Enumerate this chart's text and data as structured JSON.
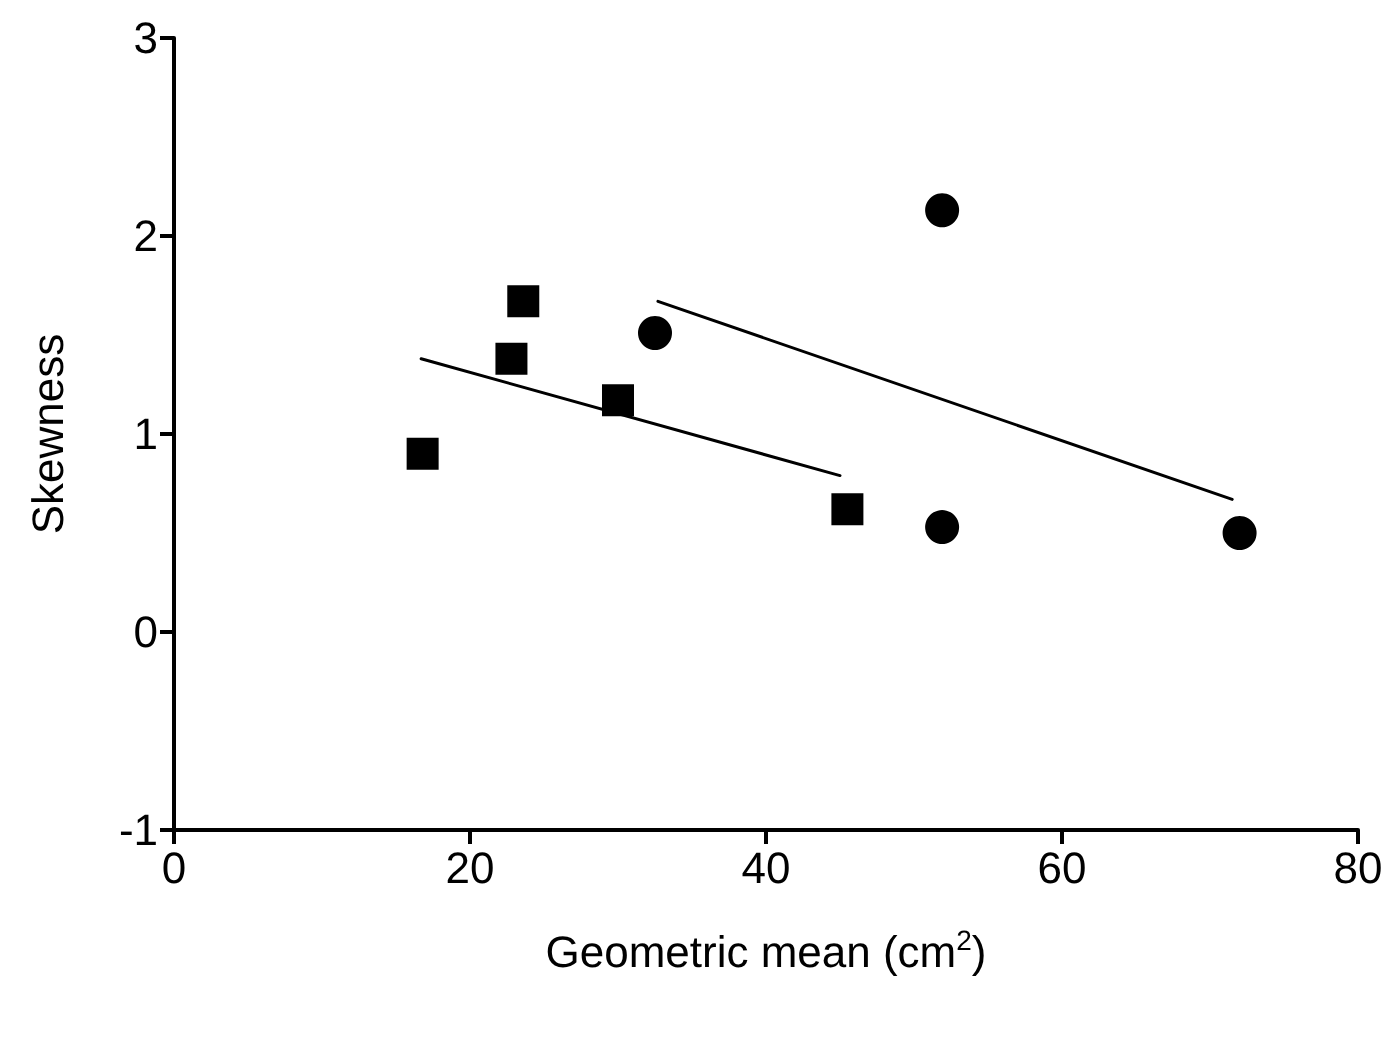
{
  "chart_data": {
    "type": "scatter",
    "xlabel": "Geometric mean (cm$^{2}$)",
    "ylabel": "Skewness",
    "xlim": [
      0,
      80
    ],
    "xticks": [
      0,
      20,
      40,
      60,
      80
    ],
    "ylim": [
      -1,
      3
    ],
    "yticks": [
      -1,
      0,
      1,
      2,
      3
    ],
    "grid": false,
    "series": [
      {
        "marker": "square",
        "color": "#000000",
        "x": [
          16.8,
          22.8,
          23.6,
          30.0,
          45.5
        ],
        "values": [
          0.9,
          1.38,
          1.67,
          1.17,
          0.62
        ]
      },
      {
        "marker": "circle",
        "color": "#000000",
        "x": [
          32.5,
          51.9,
          51.9,
          72.0
        ],
        "values": [
          1.51,
          2.13,
          0.53,
          0.5
        ]
      },
      {
        "type": "line",
        "marker": "none",
        "line_style": "solid",
        "color": "#000000",
        "x": [
          16.7,
          45.0
        ],
        "values": [
          1.38,
          0.79
        ]
      },
      {
        "type": "line",
        "marker": "none",
        "line_style": "solid",
        "color": "#000000",
        "x": [
          32.7,
          71.5
        ],
        "values": [
          1.67,
          0.67
        ]
      }
    ]
  }
}
